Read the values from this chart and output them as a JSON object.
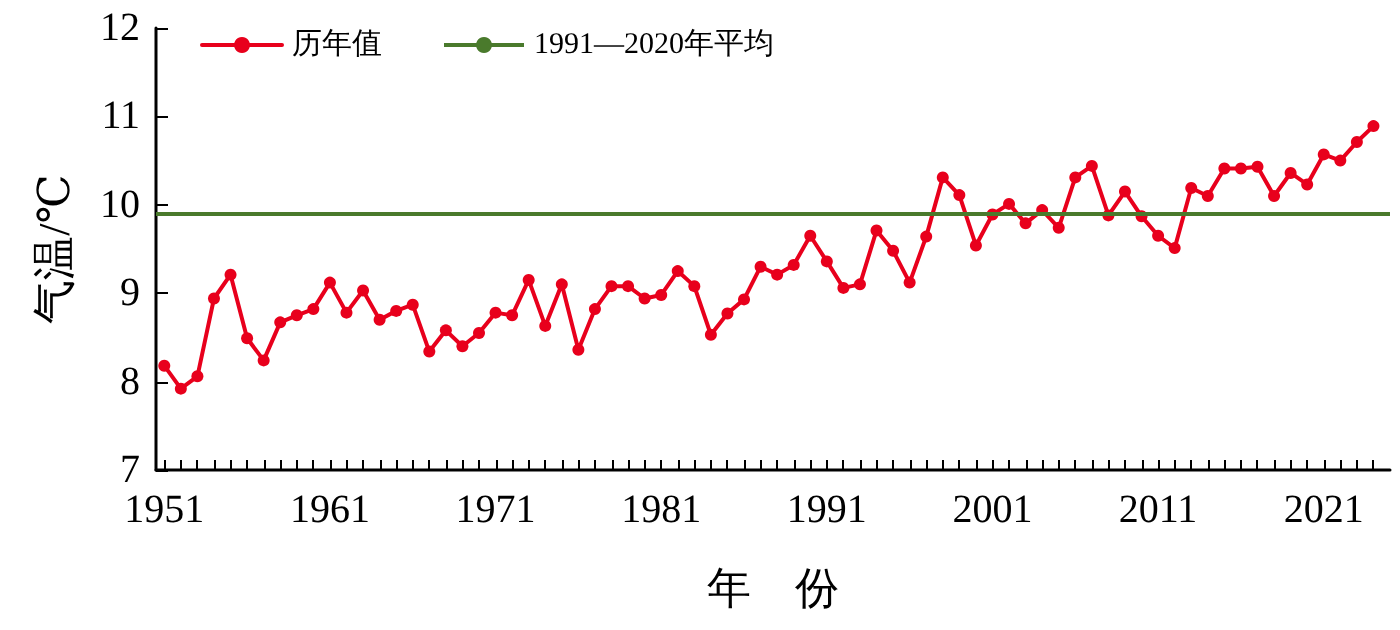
{
  "chart_data": {
    "type": "line",
    "xlabel": "年　份",
    "ylabel": "气温/℃",
    "x": [
      1951,
      1952,
      1953,
      1954,
      1955,
      1956,
      1957,
      1958,
      1959,
      1960,
      1961,
      1962,
      1963,
      1964,
      1965,
      1966,
      1967,
      1968,
      1969,
      1970,
      1971,
      1972,
      1973,
      1974,
      1975,
      1976,
      1977,
      1978,
      1979,
      1980,
      1981,
      1982,
      1983,
      1984,
      1985,
      1986,
      1987,
      1988,
      1989,
      1990,
      1991,
      1992,
      1993,
      1994,
      1995,
      1996,
      1997,
      1998,
      1999,
      2000,
      2001,
      2002,
      2003,
      2004,
      2005,
      2006,
      2007,
      2008,
      2009,
      2010,
      2011,
      2012,
      2013,
      2014,
      2015,
      2016,
      2017,
      2018,
      2019,
      2020,
      2021,
      2022,
      2023,
      2024
    ],
    "series": [
      {
        "name": "历年值",
        "color": "#e8001c",
        "values": [
          8.18,
          7.92,
          8.06,
          8.94,
          9.21,
          8.49,
          8.24,
          8.67,
          8.75,
          8.82,
          9.12,
          8.78,
          9.03,
          8.7,
          8.8,
          8.87,
          8.34,
          8.58,
          8.4,
          8.55,
          8.78,
          8.75,
          9.15,
          8.63,
          9.1,
          8.36,
          8.82,
          9.08,
          9.08,
          8.94,
          8.98,
          9.25,
          9.08,
          8.53,
          8.77,
          8.93,
          9.3,
          9.21,
          9.32,
          9.65,
          9.36,
          9.06,
          9.1,
          9.71,
          9.48,
          9.12,
          9.64,
          10.31,
          10.11,
          9.54,
          9.89,
          10.01,
          9.79,
          9.94,
          9.74,
          10.31,
          10.44,
          9.88,
          10.15,
          9.87,
          9.65,
          9.51,
          10.19,
          10.1,
          10.41,
          10.41,
          10.43,
          10.1,
          10.36,
          10.23,
          10.57,
          10.5,
          10.71,
          10.89
        ]
      }
    ],
    "ref_lines": [
      {
        "axis": "y",
        "value": 9.9,
        "label": "1991—2020年平均",
        "color": "#4a7a2c"
      }
    ],
    "xlim": [
      1950.5,
      2025
    ],
    "xticks": [
      {
        "value": 1951,
        "label": "1951"
      },
      {
        "value": 1952,
        "label": null
      },
      {
        "value": 1953,
        "label": null
      },
      {
        "value": 1954,
        "label": null
      },
      {
        "value": 1955,
        "label": null
      },
      {
        "value": 1956,
        "label": null
      },
      {
        "value": 1957,
        "label": null
      },
      {
        "value": 1958,
        "label": null
      },
      {
        "value": 1959,
        "label": null
      },
      {
        "value": 1960,
        "label": null
      },
      {
        "value": 1961,
        "label": "1961"
      },
      {
        "value": 1962,
        "label": null
      },
      {
        "value": 1963,
        "label": null
      },
      {
        "value": 1964,
        "label": null
      },
      {
        "value": 1965,
        "label": null
      },
      {
        "value": 1966,
        "label": null
      },
      {
        "value": 1967,
        "label": null
      },
      {
        "value": 1968,
        "label": null
      },
      {
        "value": 1969,
        "label": null
      },
      {
        "value": 1970,
        "label": null
      },
      {
        "value": 1971,
        "label": "1971"
      },
      {
        "value": 1972,
        "label": null
      },
      {
        "value": 1973,
        "label": null
      },
      {
        "value": 1974,
        "label": null
      },
      {
        "value": 1975,
        "label": null
      },
      {
        "value": 1976,
        "label": null
      },
      {
        "value": 1977,
        "label": null
      },
      {
        "value": 1978,
        "label": null
      },
      {
        "value": 1979,
        "label": null
      },
      {
        "value": 1980,
        "label": null
      },
      {
        "value": 1981,
        "label": "1981"
      },
      {
        "value": 1982,
        "label": null
      },
      {
        "value": 1983,
        "label": null
      },
      {
        "value": 1984,
        "label": null
      },
      {
        "value": 1985,
        "label": null
      },
      {
        "value": 1986,
        "label": null
      },
      {
        "value": 1987,
        "label": null
      },
      {
        "value": 1988,
        "label": null
      },
      {
        "value": 1989,
        "label": null
      },
      {
        "value": 1990,
        "label": null
      },
      {
        "value": 1991,
        "label": "1991"
      },
      {
        "value": 1992,
        "label": null
      },
      {
        "value": 1993,
        "label": null
      },
      {
        "value": 1994,
        "label": null
      },
      {
        "value": 1995,
        "label": null
      },
      {
        "value": 1996,
        "label": null
      },
      {
        "value": 1997,
        "label": null
      },
      {
        "value": 1998,
        "label": null
      },
      {
        "value": 1999,
        "label": null
      },
      {
        "value": 2000,
        "label": null
      },
      {
        "value": 2001,
        "label": "2001"
      },
      {
        "value": 2002,
        "label": null
      },
      {
        "value": 2003,
        "label": null
      },
      {
        "value": 2004,
        "label": null
      },
      {
        "value": 2005,
        "label": null
      },
      {
        "value": 2006,
        "label": null
      },
      {
        "value": 2007,
        "label": null
      },
      {
        "value": 2008,
        "label": null
      },
      {
        "value": 2009,
        "label": null
      },
      {
        "value": 2010,
        "label": null
      },
      {
        "value": 2011,
        "label": "2011"
      },
      {
        "value": 2012,
        "label": null
      },
      {
        "value": 2013,
        "label": null
      },
      {
        "value": 2014,
        "label": null
      },
      {
        "value": 2015,
        "label": null
      },
      {
        "value": 2016,
        "label": null
      },
      {
        "value": 2017,
        "label": null
      },
      {
        "value": 2018,
        "label": null
      },
      {
        "value": 2019,
        "label": null
      },
      {
        "value": 2020,
        "label": null
      },
      {
        "value": 2021,
        "label": "2021"
      },
      {
        "value": 2022,
        "label": null
      },
      {
        "value": 2023,
        "label": null
      },
      {
        "value": 2024,
        "label": null
      }
    ],
    "ylim": [
      7,
      12
    ],
    "yticks": [
      7,
      8,
      9,
      10,
      11,
      12
    ],
    "grid": false,
    "legend": "top left",
    "marker": "circle",
    "line_style": "solid"
  }
}
